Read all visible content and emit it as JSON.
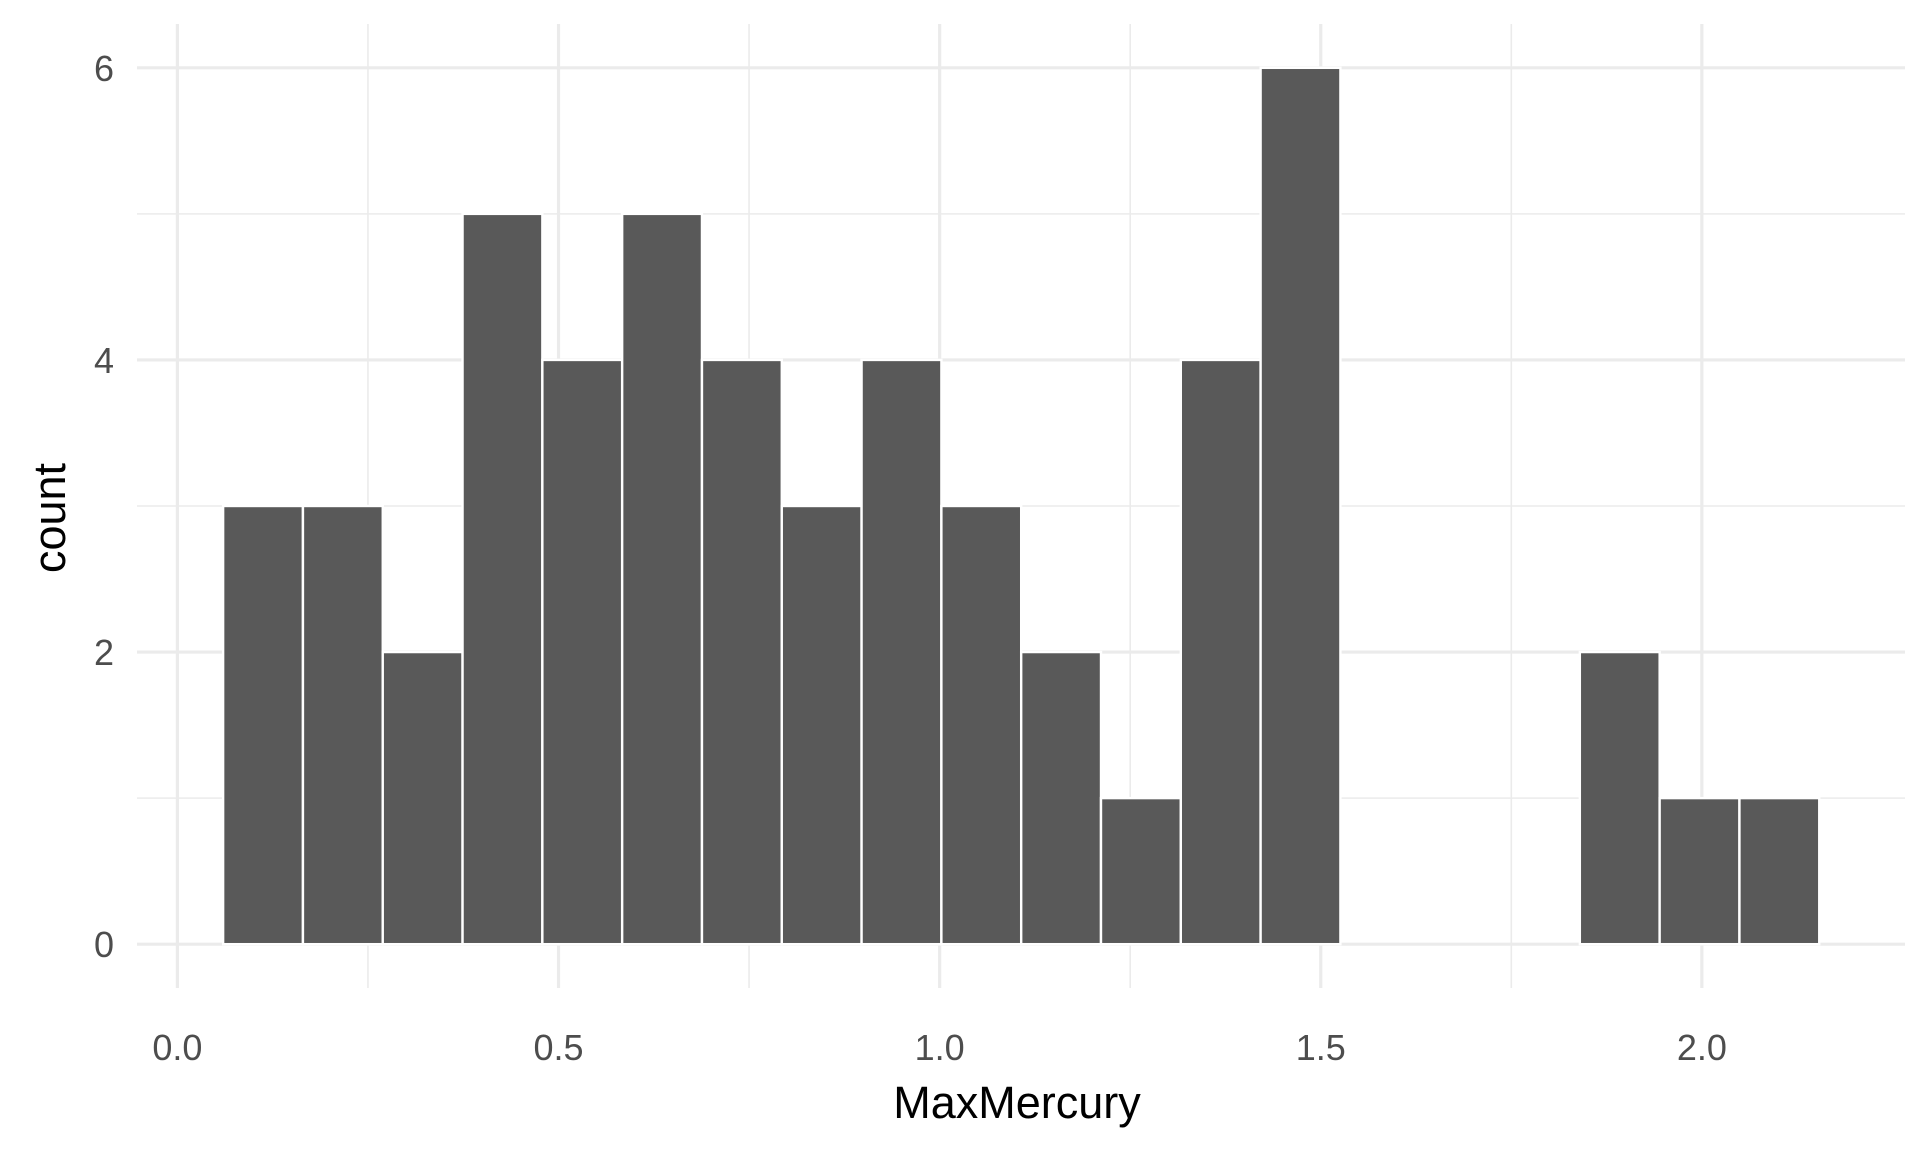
{
  "chart_data": {
    "type": "bar",
    "subtype": "histogram",
    "title": "",
    "xlabel": "MaxMercury",
    "ylabel": "count",
    "bin_width": 0.1047,
    "bins": [
      {
        "x_start": 0.06,
        "x_end": 0.1647,
        "count": 3
      },
      {
        "x_start": 0.1647,
        "x_end": 0.2694,
        "count": 3
      },
      {
        "x_start": 0.2694,
        "x_end": 0.3741,
        "count": 2
      },
      {
        "x_start": 0.3741,
        "x_end": 0.4788,
        "count": 5
      },
      {
        "x_start": 0.4788,
        "x_end": 0.5835,
        "count": 4
      },
      {
        "x_start": 0.5835,
        "x_end": 0.6882,
        "count": 5
      },
      {
        "x_start": 0.6882,
        "x_end": 0.7929,
        "count": 4
      },
      {
        "x_start": 0.7929,
        "x_end": 0.8976,
        "count": 3
      },
      {
        "x_start": 0.8976,
        "x_end": 1.0023,
        "count": 4
      },
      {
        "x_start": 1.0023,
        "x_end": 1.107,
        "count": 3
      },
      {
        "x_start": 1.107,
        "x_end": 1.2117,
        "count": 2
      },
      {
        "x_start": 1.2117,
        "x_end": 1.3164,
        "count": 1
      },
      {
        "x_start": 1.3164,
        "x_end": 1.4211,
        "count": 4
      },
      {
        "x_start": 1.4211,
        "x_end": 1.5258,
        "count": 6
      },
      {
        "x_start": 1.5258,
        "x_end": 1.6305,
        "count": 0
      },
      {
        "x_start": 1.6305,
        "x_end": 1.7352,
        "count": 0
      },
      {
        "x_start": 1.7352,
        "x_end": 1.8399,
        "count": 0
      },
      {
        "x_start": 1.8399,
        "x_end": 1.9446,
        "count": 2
      },
      {
        "x_start": 1.9446,
        "x_end": 2.0493,
        "count": 1
      },
      {
        "x_start": 2.0493,
        "x_end": 2.154,
        "count": 1
      }
    ],
    "xlim": [
      -0.053,
      2.2665
    ],
    "ylim": [
      -0.3,
      6.3
    ],
    "x_ticks": [
      {
        "value": 0.0,
        "label": "0.0"
      },
      {
        "value": 0.5,
        "label": "0.5"
      },
      {
        "value": 1.0,
        "label": "1.0"
      },
      {
        "value": 1.5,
        "label": "1.5"
      },
      {
        "value": 2.0,
        "label": "2.0"
      }
    ],
    "y_ticks": [
      {
        "value": 0,
        "label": "0"
      },
      {
        "value": 2,
        "label": "2"
      },
      {
        "value": 4,
        "label": "4"
      },
      {
        "value": 6,
        "label": "6"
      }
    ],
    "x_minor_ticks": [
      0.25,
      0.75,
      1.25,
      1.75
    ],
    "y_minor_ticks": [
      1,
      3,
      5
    ],
    "grid": true,
    "legend": "none",
    "colors": {
      "bar_fill": "#595959",
      "bar_outline": "#ffffff",
      "grid": "#ebebeb",
      "tick_text": "#4d4d4d",
      "axis_title": "#000000",
      "background": "#ffffff"
    }
  }
}
